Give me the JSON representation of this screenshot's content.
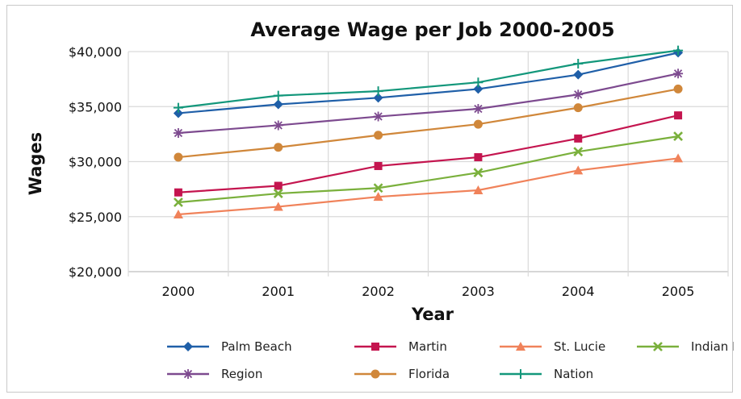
{
  "chart_data": {
    "type": "line",
    "title": "Average Wage per Job 2000-2005",
    "xlabel": "Year",
    "ylabel": "Wages",
    "x": [
      "2000",
      "2001",
      "2002",
      "2003",
      "2004",
      "2005"
    ],
    "ylim": [
      20000,
      40000
    ],
    "yticks": [
      20000,
      25000,
      30000,
      35000,
      40000
    ],
    "ytick_labels": [
      "$20,000",
      "$25,000",
      "$30,000",
      "$35,000",
      "$40,000"
    ],
    "grid": true,
    "legend_position": "bottom",
    "series": [
      {
        "name": "Palm Beach",
        "color": "#1f5fa8",
        "marker": "diamond",
        "values": [
          34400,
          35200,
          35800,
          36600,
          37900,
          39900
        ]
      },
      {
        "name": "Martin",
        "color": "#c4154f",
        "marker": "square",
        "values": [
          27200,
          27800,
          29600,
          30400,
          32100,
          34200
        ]
      },
      {
        "name": "St. Lucie",
        "color": "#f0825a",
        "marker": "triangle",
        "values": [
          25200,
          25900,
          26800,
          27400,
          29200,
          30300
        ]
      },
      {
        "name": "Indian River",
        "color": "#7ab03c",
        "marker": "x",
        "values": [
          26300,
          27100,
          27600,
          29000,
          30900,
          32300
        ]
      },
      {
        "name": "Region",
        "color": "#7d4a8f",
        "marker": "star",
        "values": [
          32600,
          33300,
          34100,
          34800,
          36100,
          38000
        ]
      },
      {
        "name": "Florida",
        "color": "#d0873a",
        "marker": "circle",
        "values": [
          30400,
          31300,
          32400,
          33400,
          34900,
          36600
        ]
      },
      {
        "name": "Nation",
        "color": "#13977b",
        "marker": "plus",
        "values": [
          34900,
          36000,
          36400,
          37200,
          38900,
          40100
        ]
      }
    ]
  }
}
